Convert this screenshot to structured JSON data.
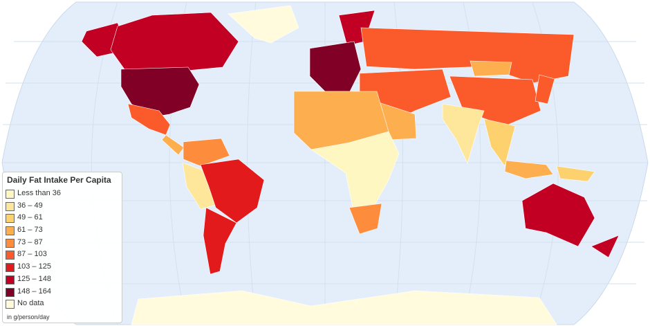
{
  "legend": {
    "title": "Daily Fat Intake Per Capita",
    "items": [
      {
        "label": "Less than 36",
        "color": "#fff7c2"
      },
      {
        "label": "36 – 49",
        "color": "#fee79b"
      },
      {
        "label": "49 – 61",
        "color": "#fed16f"
      },
      {
        "label": "61 – 73",
        "color": "#fdae4f"
      },
      {
        "label": "73 – 87",
        "color": "#fd8d3c"
      },
      {
        "label": "87 – 103",
        "color": "#fb5a2a"
      },
      {
        "label": "103 – 125",
        "color": "#e31a1c"
      },
      {
        "label": "125 – 148",
        "color": "#c10024"
      },
      {
        "label": "148 – 164",
        "color": "#800026"
      },
      {
        "label": "No data",
        "color": "#fffbdc"
      }
    ],
    "note": "in g/person/day"
  }
}
